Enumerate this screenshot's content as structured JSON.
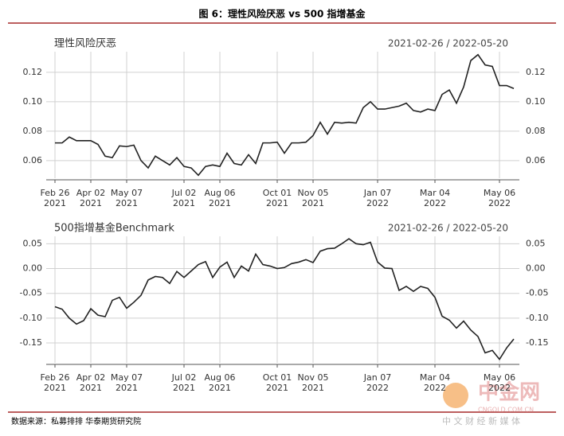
{
  "header": {
    "title": "图 6：理性风险厌恶 vs 500 指增基金"
  },
  "chart_data": [
    {
      "type": "line",
      "title": "理性风险厌恶",
      "subtitle": "2021-02-26 / 2022-05-20",
      "color": "#222222",
      "grid": true,
      "x": [
        "2021-02-26",
        "2021-03-05",
        "2021-03-12",
        "2021-03-19",
        "2021-03-26",
        "2021-04-02",
        "2021-04-09",
        "2021-04-16",
        "2021-04-23",
        "2021-04-30",
        "2021-05-07",
        "2021-05-14",
        "2021-05-21",
        "2021-05-28",
        "2021-06-04",
        "2021-06-11",
        "2021-06-18",
        "2021-06-25",
        "2021-07-02",
        "2021-07-09",
        "2021-07-16",
        "2021-07-23",
        "2021-07-30",
        "2021-08-06",
        "2021-08-13",
        "2021-08-20",
        "2021-08-27",
        "2021-09-03",
        "2021-09-10",
        "2021-09-17",
        "2021-09-24",
        "2021-10-01",
        "2021-10-08",
        "2021-10-15",
        "2021-10-22",
        "2021-10-29",
        "2021-11-05",
        "2021-11-12",
        "2021-11-19",
        "2021-11-26",
        "2021-12-03",
        "2021-12-10",
        "2021-12-17",
        "2021-12-24",
        "2021-12-31",
        "2022-01-07",
        "2022-01-14",
        "2022-01-21",
        "2022-01-28",
        "2022-02-04",
        "2022-02-11",
        "2022-02-18",
        "2022-02-25",
        "2022-03-04",
        "2022-03-11",
        "2022-03-18",
        "2022-03-25",
        "2022-04-01",
        "2022-04-08",
        "2022-04-15",
        "2022-04-22",
        "2022-04-29",
        "2022-05-06",
        "2022-05-13",
        "2022-05-20"
      ],
      "values": [
        0.072,
        0.072,
        0.076,
        0.0735,
        0.0735,
        0.0735,
        0.071,
        0.063,
        0.062,
        0.07,
        0.0695,
        0.0705,
        0.06,
        0.055,
        0.063,
        0.06,
        0.057,
        0.062,
        0.056,
        0.055,
        0.05,
        0.056,
        0.057,
        0.056,
        0.065,
        0.058,
        0.057,
        0.064,
        0.058,
        0.072,
        0.072,
        0.0725,
        0.065,
        0.072,
        0.072,
        0.0725,
        0.077,
        0.086,
        0.078,
        0.086,
        0.0855,
        0.086,
        0.0855,
        0.096,
        0.1,
        0.095,
        0.095,
        0.096,
        0.097,
        0.099,
        0.094,
        0.093,
        0.095,
        0.094,
        0.105,
        0.108,
        0.099,
        0.11,
        0.128,
        0.132,
        0.125,
        0.124,
        0.111,
        0.111,
        0.109
      ],
      "xlim": [
        "2021-02-26",
        "2022-05-20"
      ],
      "xticks": [
        {
          "value": "2021-02-26",
          "label": "Feb 26\n2021"
        },
        {
          "value": "2021-04-02",
          "label": "Apr 02\n2021"
        },
        {
          "value": "2021-05-07",
          "label": "May 07\n2021"
        },
        {
          "value": "2021-07-02",
          "label": "Jul 02\n2021"
        },
        {
          "value": "2021-08-06",
          "label": "Aug 06\n2021"
        },
        {
          "value": "2021-10-01",
          "label": "Oct 01\n2021"
        },
        {
          "value": "2021-11-05",
          "label": "Nov 05\n2021"
        },
        {
          "value": "2022-01-07",
          "label": "Jan 07\n2022"
        },
        {
          "value": "2022-03-04",
          "label": "Mar 04\n2022"
        },
        {
          "value": "2022-05-06",
          "label": "May 06\n2022"
        }
      ],
      "ylim": [
        0.048,
        0.134
      ],
      "yticks": [
        0.06,
        0.08,
        {
          "value": 0.1,
          "label": "0.10"
        },
        0.12
      ]
    },
    {
      "type": "line",
      "title": "500指增基金Benchmark",
      "subtitle": "2021-02-26 / 2022-05-20",
      "color": "#222222",
      "grid": true,
      "x": [
        "2021-02-26",
        "2021-03-05",
        "2021-03-12",
        "2021-03-19",
        "2021-03-26",
        "2021-04-02",
        "2021-04-09",
        "2021-04-16",
        "2021-04-23",
        "2021-04-30",
        "2021-05-07",
        "2021-05-14",
        "2021-05-21",
        "2021-05-28",
        "2021-06-04",
        "2021-06-11",
        "2021-06-18",
        "2021-06-25",
        "2021-07-02",
        "2021-07-09",
        "2021-07-16",
        "2021-07-23",
        "2021-07-30",
        "2021-08-06",
        "2021-08-13",
        "2021-08-20",
        "2021-08-27",
        "2021-09-03",
        "2021-09-10",
        "2021-09-17",
        "2021-09-24",
        "2021-10-01",
        "2021-10-08",
        "2021-10-15",
        "2021-10-22",
        "2021-10-29",
        "2021-11-05",
        "2021-11-12",
        "2021-11-19",
        "2021-11-26",
        "2021-12-03",
        "2021-12-10",
        "2021-12-17",
        "2021-12-24",
        "2021-12-31",
        "2022-01-07",
        "2022-01-14",
        "2022-01-21",
        "2022-01-28",
        "2022-02-04",
        "2022-02-11",
        "2022-02-18",
        "2022-02-25",
        "2022-03-04",
        "2022-03-11",
        "2022-03-18",
        "2022-03-25",
        "2022-04-01",
        "2022-04-08",
        "2022-04-15",
        "2022-04-22",
        "2022-04-29",
        "2022-05-06",
        "2022-05-13",
        "2022-05-20"
      ],
      "values": [
        -0.077,
        -0.082,
        -0.1,
        -0.112,
        -0.105,
        -0.081,
        -0.094,
        -0.097,
        -0.064,
        -0.058,
        -0.08,
        -0.068,
        -0.054,
        -0.023,
        -0.016,
        -0.018,
        -0.03,
        -0.006,
        -0.018,
        -0.005,
        0.008,
        0.014,
        -0.018,
        0.003,
        0.013,
        -0.018,
        0.005,
        -0.005,
        0.029,
        0.008,
        0.005,
        0.0,
        0.002,
        0.01,
        0.013,
        0.018,
        0.012,
        0.035,
        0.04,
        0.041,
        0.05,
        0.06,
        0.05,
        0.048,
        0.053,
        0.013,
        0.001,
        0.0,
        -0.044,
        -0.036,
        -0.046,
        -0.036,
        -0.04,
        -0.058,
        -0.096,
        -0.104,
        -0.12,
        -0.106,
        -0.124,
        -0.137,
        -0.17,
        -0.165,
        -0.183,
        -0.16,
        -0.142
      ],
      "xlim": [
        "2021-02-26",
        "2022-05-20"
      ],
      "xticks": [
        {
          "value": "2021-02-26",
          "label": "Feb 26\n2021"
        },
        {
          "value": "2021-04-02",
          "label": "Apr 02\n2021"
        },
        {
          "value": "2021-05-07",
          "label": "May 07\n2021"
        },
        {
          "value": "2021-07-02",
          "label": "Jul 02\n2021"
        },
        {
          "value": "2021-08-06",
          "label": "Aug 06\n2021"
        },
        {
          "value": "2021-10-01",
          "label": "Oct 01\n2021"
        },
        {
          "value": "2021-11-05",
          "label": "Nov 05\n2021"
        },
        {
          "value": "2022-01-07",
          "label": "Jan 07\n2022"
        },
        {
          "value": "2022-03-04",
          "label": "Mar 04\n2022"
        },
        {
          "value": "2022-05-06",
          "label": "May 06\n2022"
        }
      ],
      "ylim": [
        -0.19,
        0.065
      ],
      "yticks": [
        0.05,
        {
          "value": 0,
          "label": "0.00"
        },
        -0.05,
        {
          "value": -0.1,
          "label": "-0.10"
        },
        -0.15
      ]
    }
  ],
  "source": "数据来源：私募排排 华泰期货研究院",
  "watermark": {
    "logo": "中金网",
    "site": "CNGOLD.COM.CN",
    "slogan": "中 文 财 经 新 媒 体"
  }
}
